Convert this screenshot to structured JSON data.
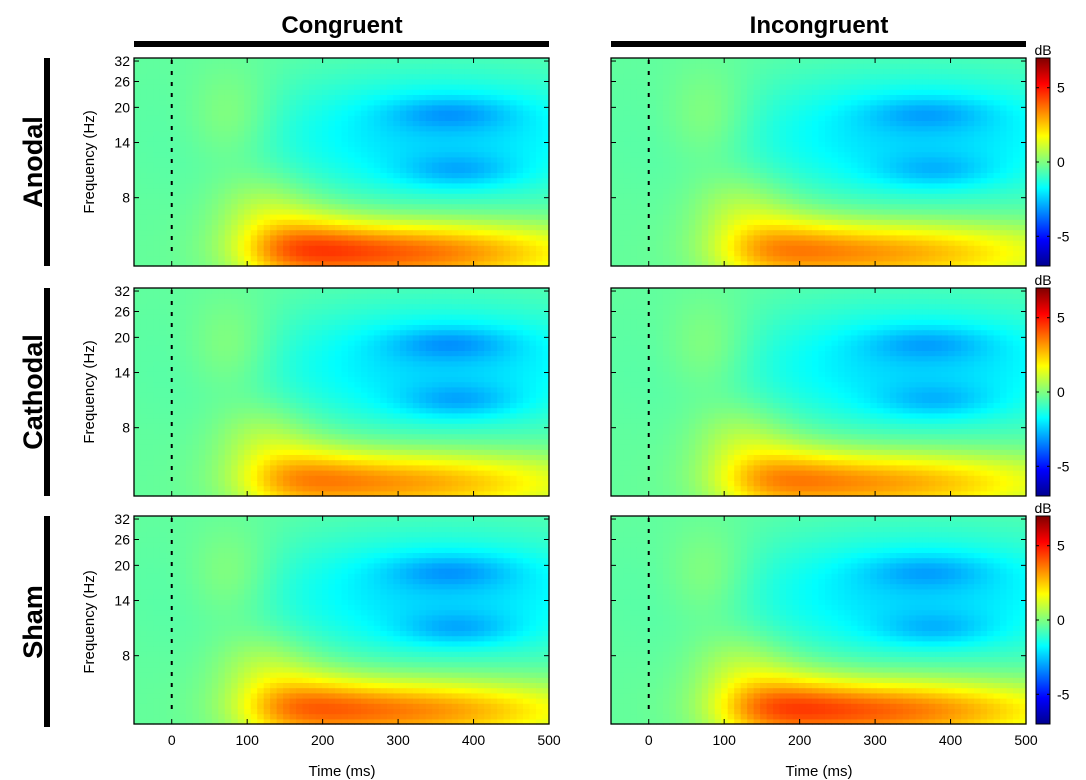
{
  "chart_data": {
    "type": "heatmap",
    "description_columns": [
      "Congruent",
      "Incongruent"
    ],
    "rows": [
      "Anodal",
      "Cathodal",
      "Sham"
    ],
    "x": {
      "label": "Time (ms)",
      "lim": [
        -50,
        500
      ],
      "ticks": [
        0,
        100,
        200,
        300,
        400,
        500
      ],
      "tick_labels": [
        "0",
        "100",
        "200",
        "300",
        "400",
        "500"
      ]
    },
    "y": {
      "label": "Frequency (Hz)",
      "scale": "log",
      "lim": [
        4,
        33
      ],
      "ticks": [
        32,
        26,
        20,
        14,
        8
      ],
      "tick_labels": [
        "32",
        "26",
        "20",
        "14",
        "8"
      ]
    },
    "colorbar": {
      "label": "dB",
      "colormap": "jet",
      "lim": [
        -7,
        7
      ],
      "ticks": [
        5,
        0,
        -5
      ],
      "tick_labels": [
        "5",
        "0",
        "-5"
      ]
    },
    "stimulus_onset_ms": 0,
    "panels": [
      {
        "row": "Anodal",
        "column": "Congruent",
        "alpha_peak_db": 5.5,
        "theta_peak_db": 5.0,
        "beta_min_db": -2.3
      },
      {
        "row": "Anodal",
        "column": "Incongruent",
        "alpha_peak_db": 4.5,
        "theta_peak_db": 4.0,
        "beta_min_db": -2.0
      },
      {
        "row": "Cathodal",
        "column": "Congruent",
        "alpha_peak_db": 4.5,
        "theta_peak_db": 3.8,
        "beta_min_db": -2.4
      },
      {
        "row": "Cathodal",
        "column": "Incongruent",
        "alpha_peak_db": 4.5,
        "theta_peak_db": 4.0,
        "beta_min_db": -2.0
      },
      {
        "row": "Sham",
        "column": "Congruent",
        "alpha_peak_db": 5.0,
        "theta_peak_db": 4.2,
        "beta_min_db": -2.3
      },
      {
        "row": "Sham",
        "column": "Incongruent",
        "alpha_peak_db": 5.5,
        "theta_peak_db": 4.5,
        "beta_min_db": -2.0
      }
    ]
  },
  "columns": {
    "congruent": "Congruent",
    "incongruent": "Incongruent"
  },
  "row_labels": {
    "anodal": "Anodal",
    "cathodal": "Cathodal",
    "sham": "Sham"
  },
  "labels": {
    "ylabel": "Frequency (Hz)",
    "xlabel": "Time (ms)",
    "cbar": "dB"
  }
}
